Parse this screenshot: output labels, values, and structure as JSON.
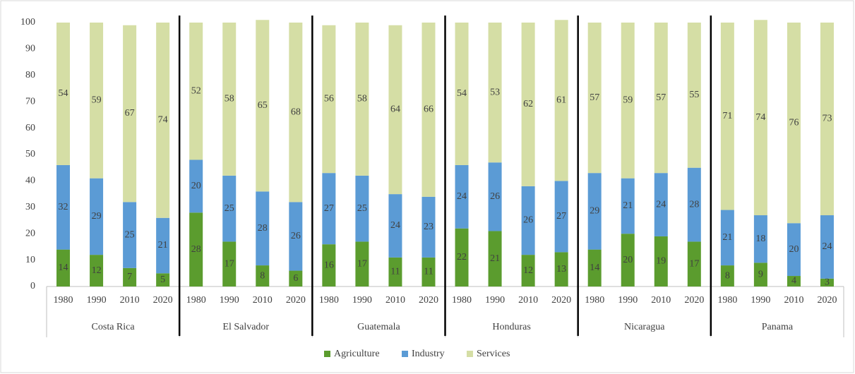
{
  "chart_data": {
    "type": "stacked-bar",
    "categories": [
      "1980",
      "1990",
      "2010",
      "2020",
      "1980",
      "1990",
      "2010",
      "2020",
      "1980",
      "1990",
      "2010",
      "2020",
      "1980",
      "1990",
      "2010",
      "2020",
      "1980",
      "1990",
      "2010",
      "2020",
      "1980",
      "1990",
      "2010",
      "2020"
    ],
    "groups": [
      "Costa Rica",
      "El Salvador",
      "Guatemala",
      "Honduras",
      "Nicaragua",
      "Panama"
    ],
    "series": [
      {
        "name": "Agriculture",
        "color": "#5b9c2e",
        "values": [
          14,
          12,
          7,
          5,
          28,
          17,
          8,
          6,
          16,
          17,
          11,
          11,
          22,
          21,
          12,
          13,
          14,
          20,
          19,
          17,
          8,
          9,
          4,
          3
        ]
      },
      {
        "name": "Industry",
        "color": "#5b9bd5",
        "values": [
          32,
          29,
          25,
          21,
          20,
          25,
          28,
          26,
          27,
          25,
          24,
          23,
          24,
          26,
          26,
          27,
          29,
          21,
          24,
          28,
          21,
          18,
          20,
          24
        ]
      },
      {
        "name": "Services",
        "color": "#d5dea5",
        "values": [
          54,
          59,
          67,
          74,
          52,
          58,
          65,
          68,
          56,
          58,
          64,
          66,
          54,
          53,
          62,
          61,
          57,
          59,
          57,
          55,
          71,
          74,
          76,
          73
        ]
      }
    ],
    "ylim": [
      0,
      100
    ],
    "yticks": [
      0,
      10,
      20,
      30,
      40,
      50,
      60,
      70,
      80,
      90,
      100
    ],
    "grid": false,
    "legend": "bottom"
  }
}
